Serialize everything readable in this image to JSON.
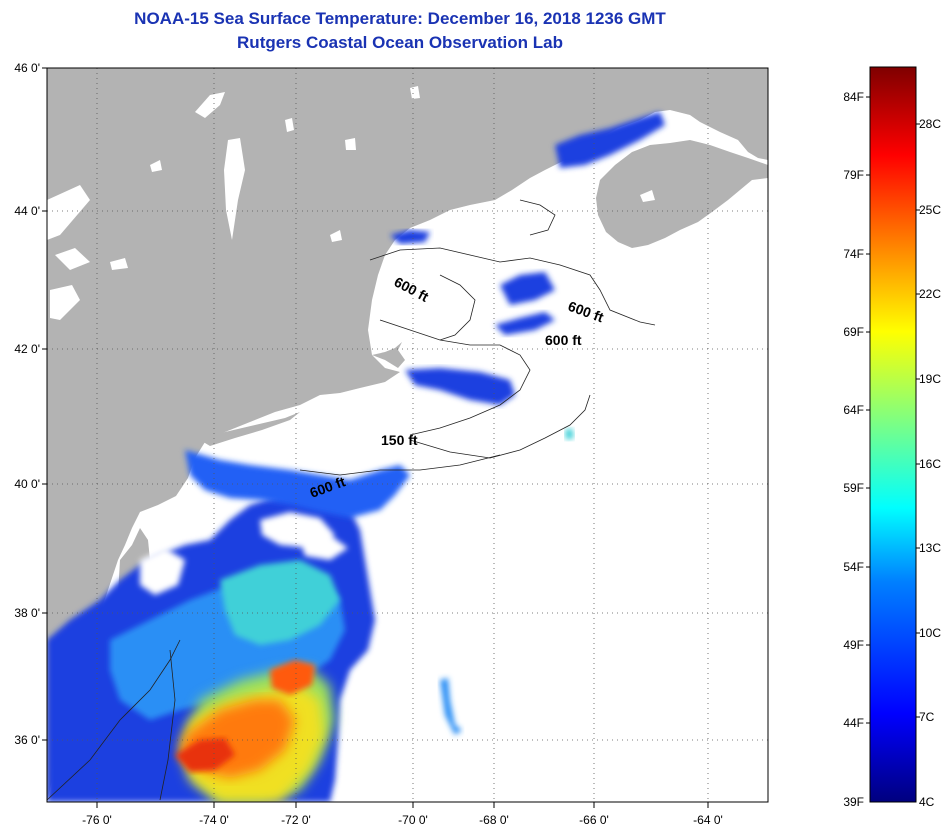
{
  "title": "NOAA-15 Sea Surface Temperature:  December 16, 2018 1236 GMT",
  "subtitle": "Rutgers Coastal Ocean Observation Lab",
  "map": {
    "lat_labels": [
      "46 0'",
      "44 0'",
      "42 0'",
      "40 0'",
      "38 0'",
      "36 0'"
    ],
    "lon_labels": [
      "-76 0'",
      "-74 0'",
      "-72 0'",
      "-70 0'",
      "-68 0'",
      "-66 0'",
      "-64 0'"
    ],
    "contour_labels": [
      "600 ft",
      "600 ft",
      "600 ft",
      "150 ft",
      "600 ft"
    ]
  },
  "colorbar": {
    "fahrenheit_labels": [
      "84F",
      "79F",
      "74F",
      "69F",
      "64F",
      "59F",
      "54F",
      "49F",
      "44F",
      "39F"
    ],
    "celsius_labels": [
      "28C",
      "25C",
      "22C",
      "19C",
      "16C",
      "13C",
      "10C",
      "7C",
      "4C"
    ],
    "colors": [
      "#00007f",
      "#0000ff",
      "#0080ff",
      "#00ffff",
      "#80ff80",
      "#ffff00",
      "#ff8000",
      "#ff0000",
      "#7f0000"
    ]
  },
  "colors": {
    "title": "#1a33b3",
    "land": "#b3b3b3",
    "cloud_mask": "#ffffff"
  }
}
